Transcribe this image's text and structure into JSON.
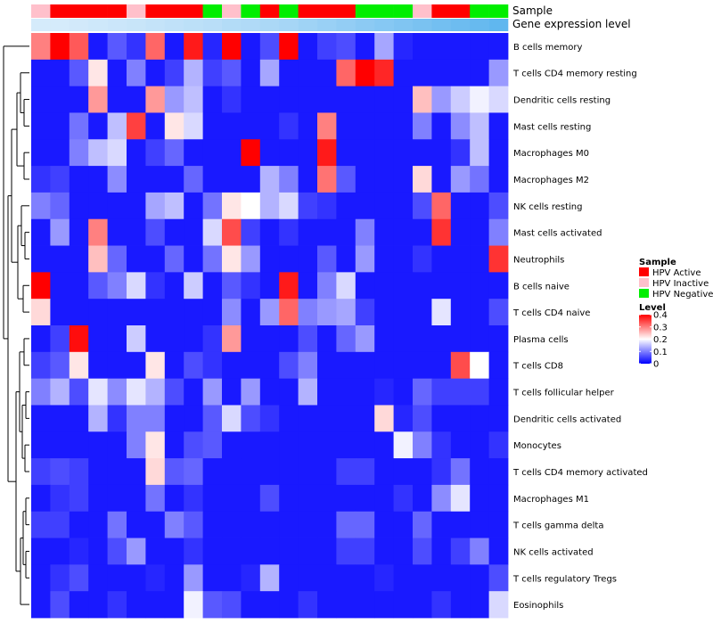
{
  "chart_data": {
    "type": "heatmap",
    "title": "",
    "annotation_tracks": [
      "Sample",
      "Gene expression level"
    ],
    "row_labels": [
      "B cells memory",
      "T cells CD4 memory resting",
      "Dendritic cells resting",
      "Mast cells resting",
      "Macrophages M0",
      "Macrophages M2",
      "NK cells resting",
      "Mast cells activated",
      "Neutrophils",
      "B cells naive",
      "T cells CD4 naive",
      "Plasma cells",
      "T cells CD8",
      "T cells follicular helper",
      "Dendritic cells activated",
      "Monocytes",
      "T cells CD4 memory activated",
      "Macrophages M1",
      "T cells gamma delta",
      "NK cells activated",
      "T cells regulatory  Tregs",
      "Eosinophils"
    ],
    "sample_groups": [
      "HPV Inactive",
      "HPV Active",
      "HPV Active",
      "HPV Active",
      "HPV Active",
      "HPV Inactive",
      "HPV Active",
      "HPV Active",
      "HPV Active",
      "HPV Negative",
      "HPV Inactive",
      "HPV Negative",
      "HPV Active",
      "HPV Negative",
      "HPV Active",
      "HPV Active",
      "HPV Active",
      "HPV Negative",
      "HPV Negative",
      "HPV Negative",
      "HPV Inactive",
      "HPV Active",
      "HPV Active",
      "HPV Negative",
      "HPV Negative"
    ],
    "expression_level": [
      0.02,
      0.02,
      0.05,
      0.08,
      0.1,
      0.13,
      0.16,
      0.19,
      0.22,
      0.25,
      0.29,
      0.32,
      0.36,
      0.4,
      0.45,
      0.5,
      0.55,
      0.6,
      0.65,
      0.7,
      0.75,
      0.8,
      0.85,
      0.9,
      0.95
    ],
    "values": [
      [
        0.3,
        0.4,
        0.33,
        0.02,
        0.07,
        0.04,
        0.32,
        0.02,
        0.38,
        0.03,
        0.4,
        0.02,
        0.06,
        0.4,
        0.02,
        0.05,
        0.06,
        0.02,
        0.13,
        0.03,
        0.02,
        0.02,
        0.02,
        0.02,
        0.02
      ],
      [
        0.02,
        0.02,
        0.07,
        0.22,
        0.02,
        0.1,
        0.02,
        0.05,
        0.14,
        0.05,
        0.07,
        0.02,
        0.13,
        0.02,
        0.02,
        0.02,
        0.32,
        0.4,
        0.37,
        0.02,
        0.02,
        0.02,
        0.02,
        0.02,
        0.12
      ],
      [
        0.02,
        0.02,
        0.02,
        0.28,
        0.02,
        0.02,
        0.28,
        0.12,
        0.15,
        0.02,
        0.04,
        0.02,
        0.02,
        0.02,
        0.02,
        0.02,
        0.02,
        0.02,
        0.02,
        0.02,
        0.25,
        0.12,
        0.16,
        0.19,
        0.17
      ],
      [
        0.02,
        0.02,
        0.09,
        0.02,
        0.15,
        0.35,
        0.02,
        0.22,
        0.17,
        0.02,
        0.02,
        0.02,
        0.02,
        0.04,
        0.02,
        0.3,
        0.02,
        0.02,
        0.02,
        0.02,
        0.1,
        0.02,
        0.11,
        0.15,
        0.02
      ],
      [
        0.02,
        0.02,
        0.1,
        0.15,
        0.17,
        0.02,
        0.05,
        0.08,
        0.02,
        0.02,
        0.02,
        0.4,
        0.02,
        0.02,
        0.02,
        0.38,
        0.02,
        0.02,
        0.02,
        0.02,
        0.02,
        0.02,
        0.04,
        0.15,
        0.02
      ],
      [
        0.04,
        0.05,
        0.02,
        0.02,
        0.11,
        0.02,
        0.02,
        0.02,
        0.08,
        0.02,
        0.02,
        0.02,
        0.14,
        0.1,
        0.02,
        0.31,
        0.07,
        0.02,
        0.02,
        0.02,
        0.23,
        0.02,
        0.12,
        0.09,
        0.02
      ],
      [
        0.1,
        0.08,
        0.02,
        0.02,
        0.02,
        0.02,
        0.13,
        0.15,
        0.02,
        0.09,
        0.22,
        0.2,
        0.14,
        0.17,
        0.05,
        0.04,
        0.02,
        0.02,
        0.02,
        0.02,
        0.06,
        0.32,
        0.02,
        0.02,
        0.06
      ],
      [
        0.02,
        0.12,
        0.02,
        0.3,
        0.02,
        0.02,
        0.06,
        0.02,
        0.02,
        0.17,
        0.34,
        0.05,
        0.02,
        0.04,
        0.02,
        0.02,
        0.02,
        0.1,
        0.02,
        0.02,
        0.02,
        0.36,
        0.02,
        0.02,
        0.1
      ],
      [
        0.02,
        0.02,
        0.02,
        0.25,
        0.08,
        0.02,
        0.02,
        0.08,
        0.02,
        0.09,
        0.22,
        0.12,
        0.02,
        0.02,
        0.02,
        0.07,
        0.02,
        0.12,
        0.02,
        0.02,
        0.04,
        0.02,
        0.02,
        0.02,
        0.36
      ],
      [
        0.4,
        0.02,
        0.02,
        0.07,
        0.1,
        0.17,
        0.04,
        0.02,
        0.16,
        0.02,
        0.07,
        0.04,
        0.02,
        0.38,
        0.02,
        0.1,
        0.17,
        0.02,
        0.02,
        0.02,
        0.02,
        0.02,
        0.02,
        0.02,
        0.02
      ],
      [
        0.23,
        0.02,
        0.02,
        0.02,
        0.02,
        0.02,
        0.02,
        0.02,
        0.02,
        0.02,
        0.11,
        0.02,
        0.12,
        0.32,
        0.1,
        0.12,
        0.13,
        0.05,
        0.02,
        0.02,
        0.02,
        0.18,
        0.02,
        0.02,
        0.06
      ],
      [
        0.02,
        0.05,
        0.39,
        0.02,
        0.02,
        0.16,
        0.02,
        0.02,
        0.02,
        0.04,
        0.28,
        0.02,
        0.02,
        0.02,
        0.06,
        0.02,
        0.08,
        0.12,
        0.02,
        0.02,
        0.02,
        0.02,
        0.02,
        0.02,
        0.02
      ],
      [
        0.05,
        0.07,
        0.22,
        0.02,
        0.02,
        0.02,
        0.22,
        0.02,
        0.06,
        0.04,
        0.02,
        0.02,
        0.02,
        0.06,
        0.1,
        0.02,
        0.02,
        0.02,
        0.02,
        0.02,
        0.02,
        0.02,
        0.34,
        0.2,
        0.02
      ],
      [
        0.1,
        0.14,
        0.06,
        0.18,
        0.11,
        0.18,
        0.14,
        0.06,
        0.02,
        0.12,
        0.02,
        0.12,
        0.02,
        0.02,
        0.14,
        0.02,
        0.02,
        0.02,
        0.03,
        0.02,
        0.08,
        0.05,
        0.05,
        0.05,
        0.02
      ],
      [
        0.02,
        0.02,
        0.02,
        0.14,
        0.04,
        0.1,
        0.1,
        0.02,
        0.02,
        0.07,
        0.17,
        0.06,
        0.04,
        0.02,
        0.02,
        0.02,
        0.02,
        0.02,
        0.23,
        0.03,
        0.06,
        0.02,
        0.02,
        0.02,
        0.02
      ],
      [
        0.02,
        0.02,
        0.02,
        0.02,
        0.02,
        0.1,
        0.22,
        0.02,
        0.06,
        0.07,
        0.02,
        0.02,
        0.02,
        0.02,
        0.02,
        0.02,
        0.02,
        0.02,
        0.02,
        0.19,
        0.1,
        0.04,
        0.02,
        0.02,
        0.04
      ],
      [
        0.05,
        0.06,
        0.05,
        0.02,
        0.02,
        0.02,
        0.23,
        0.07,
        0.08,
        0.02,
        0.02,
        0.02,
        0.02,
        0.02,
        0.02,
        0.02,
        0.05,
        0.05,
        0.02,
        0.02,
        0.02,
        0.04,
        0.09,
        0.02,
        0.02
      ],
      [
        0.02,
        0.04,
        0.05,
        0.02,
        0.02,
        0.02,
        0.09,
        0.02,
        0.04,
        0.02,
        0.02,
        0.02,
        0.06,
        0.02,
        0.02,
        0.02,
        0.02,
        0.02,
        0.02,
        0.04,
        0.02,
        0.11,
        0.18,
        0.02,
        0.02
      ],
      [
        0.05,
        0.05,
        0.02,
        0.02,
        0.09,
        0.02,
        0.02,
        0.1,
        0.07,
        0.02,
        0.02,
        0.02,
        0.02,
        0.02,
        0.02,
        0.02,
        0.08,
        0.08,
        0.02,
        0.02,
        0.08,
        0.02,
        0.02,
        0.02,
        0.02
      ],
      [
        0.02,
        0.02,
        0.03,
        0.02,
        0.06,
        0.12,
        0.02,
        0.02,
        0.04,
        0.02,
        0.02,
        0.02,
        0.02,
        0.02,
        0.02,
        0.02,
        0.05,
        0.05,
        0.02,
        0.02,
        0.06,
        0.02,
        0.05,
        0.1,
        0.02
      ],
      [
        0.02,
        0.04,
        0.06,
        0.02,
        0.02,
        0.02,
        0.03,
        0.02,
        0.12,
        0.02,
        0.02,
        0.03,
        0.14,
        0.02,
        0.02,
        0.02,
        0.02,
        0.02,
        0.03,
        0.02,
        0.02,
        0.02,
        0.02,
        0.02,
        0.06
      ],
      [
        0.02,
        0.06,
        0.02,
        0.02,
        0.04,
        0.02,
        0.02,
        0.02,
        0.19,
        0.07,
        0.06,
        0.02,
        0.02,
        0.02,
        0.04,
        0.02,
        0.02,
        0.02,
        0.02,
        0.02,
        0.02,
        0.04,
        0.02,
        0.02,
        0.17
      ]
    ],
    "legend": {
      "sample_title": "Sample",
      "sample_items": [
        {
          "label": "HPV Active",
          "color": "#ff0000"
        },
        {
          "label": "HPV Inactive",
          "color": "#ffc0cb"
        },
        {
          "label": "HPV Negative",
          "color": "#00ee00"
        }
      ],
      "level_title": "Level",
      "level_ticks": [
        "0.4",
        "0.3",
        "0.2",
        "0.1",
        "0"
      ],
      "level_range": [
        0,
        0.4
      ]
    },
    "colors": {
      "low": "#0000ff",
      "mid": "#ffffff",
      "high": "#ff0000",
      "expr_low": "#d8ecfb",
      "expr_high": "#5ab4ee"
    }
  }
}
